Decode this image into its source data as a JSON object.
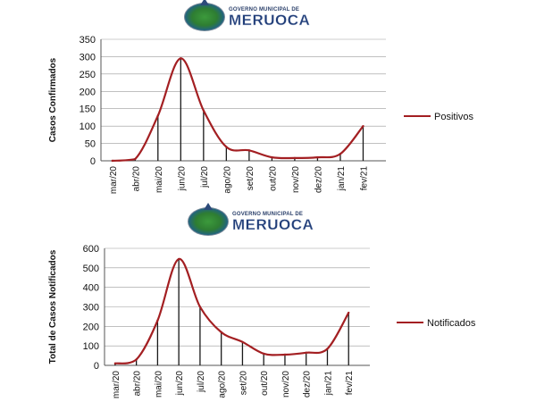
{
  "branding": {
    "org_line": "GOVERNO MUNICIPAL DE",
    "city_name": "MERUOCA"
  },
  "colors": {
    "series_line": "#a31f22",
    "drop_lines": "#1a1a1a",
    "grid": "#9a9a9a",
    "axis": "#555555"
  },
  "chart_data": [
    {
      "type": "line",
      "ylabel": "Casos Confirmados",
      "xlabel": "",
      "categories": [
        "mar/20",
        "abr/20",
        "mai/20",
        "jun/20",
        "jul/20",
        "ago/20",
        "set/20",
        "out/20",
        "nov/20",
        "dez/20",
        "jan/21",
        "fev/21"
      ],
      "yticks": [
        0,
        50,
        100,
        150,
        200,
        250,
        300,
        350
      ],
      "ylim": [
        0,
        350
      ],
      "grid": true,
      "legend_position": "right",
      "series": [
        {
          "name": "Positivos",
          "values": [
            0,
            5,
            130,
            295,
            145,
            40,
            30,
            10,
            8,
            10,
            20,
            100
          ]
        }
      ]
    },
    {
      "type": "line",
      "ylabel": "Total de Casos Notificados",
      "xlabel": "",
      "categories": [
        "mar/20",
        "abr/20",
        "mai/20",
        "jun/20",
        "jul/20",
        "ago/20",
        "set/20",
        "out/20",
        "nov/20",
        "dez/20",
        "jan/21",
        "fev/21"
      ],
      "yticks": [
        0,
        100,
        200,
        300,
        400,
        500,
        600
      ],
      "ylim": [
        0,
        600
      ],
      "grid": true,
      "legend_position": "right",
      "series": [
        {
          "name": "Notificados",
          "values": [
            10,
            30,
            230,
            545,
            300,
            170,
            120,
            60,
            55,
            65,
            85,
            270
          ]
        }
      ]
    }
  ]
}
